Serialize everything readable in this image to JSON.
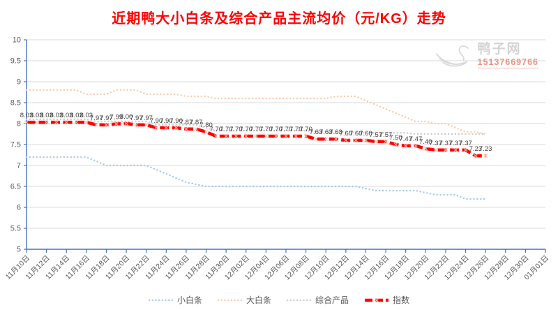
{
  "title": "近期鸭大小白条及综合产品主流均价（元/KG）走势",
  "watermark": {
    "name": "鸭子网",
    "phone": "15137669766"
  },
  "colors": {
    "title": "#ff0000",
    "axis": "#4472c4",
    "gridline": "#d9d9d9",
    "tick_label": "#595959",
    "data_label": "#404040"
  },
  "chart_data": {
    "type": "line",
    "title": "近期鸭大小白条及综合产品主流均价（元/KG）走势",
    "ylabel": "",
    "xlabel": "",
    "ylim": [
      5,
      10
    ],
    "ytick_labels": [
      "10",
      "9.5",
      "9",
      "8.5",
      "8",
      "7.5",
      "7",
      "6.5",
      "6",
      "5.5",
      "5"
    ],
    "x_tick_labels": [
      "11月10日",
      "11月12日",
      "11月14日",
      "11月16日",
      "11月18日",
      "11月20日",
      "11月22日",
      "11月24日",
      "11月26日",
      "11月28日",
      "11月30日",
      "12月02日",
      "12月04日",
      "12月06日",
      "12月08日",
      "12月10日",
      "12月12日",
      "12月14日",
      "12月16日",
      "12月18日",
      "12月20日",
      "12月22日",
      "12月24日",
      "12月26日",
      "12月28日",
      "12月30日",
      "01月01日"
    ],
    "x_tick_step_days": 2,
    "x_total_slots": 53,
    "grid": "horizontal",
    "legend_position": "bottom",
    "series": [
      {
        "name": "小白条",
        "color": "#a6c9ec",
        "line_style": "dotted",
        "show_labels": false,
        "values": [
          7.2,
          7.2,
          7.2,
          7.2,
          7.2,
          7.2,
          7.2,
          7.1,
          7.0,
          7.0,
          7.0,
          7.0,
          7.0,
          6.9,
          6.8,
          6.7,
          6.6,
          6.55,
          6.5,
          6.5,
          6.5,
          6.5,
          6.5,
          6.5,
          6.5,
          6.5,
          6.5,
          6.5,
          6.5,
          6.5,
          6.5,
          6.5,
          6.5,
          6.5,
          6.45,
          6.4,
          6.4,
          6.4,
          6.4,
          6.4,
          6.35,
          6.3,
          6.3,
          6.3,
          6.2,
          6.2,
          6.2
        ]
      },
      {
        "name": "大白条",
        "color": "#f8cbad",
        "line_style": "dotted",
        "show_labels": false,
        "values": [
          8.8,
          8.8,
          8.8,
          8.8,
          8.8,
          8.8,
          8.7,
          8.7,
          8.7,
          8.8,
          8.8,
          8.8,
          8.7,
          8.7,
          8.7,
          8.7,
          8.65,
          8.65,
          8.65,
          8.6,
          8.6,
          8.6,
          8.6,
          8.6,
          8.6,
          8.6,
          8.6,
          8.6,
          8.6,
          8.6,
          8.6,
          8.65,
          8.65,
          8.65,
          8.55,
          8.45,
          8.35,
          8.25,
          8.15,
          8.05,
          8.05,
          8.0,
          8.0,
          7.9,
          7.8,
          7.8,
          7.75
        ]
      },
      {
        "name": "综合产品",
        "color": "#cccccc",
        "line_style": "dotted",
        "show_labels": false,
        "values": [
          8.1,
          8.1,
          8.1,
          8.1,
          8.1,
          8.1,
          8.1,
          8.05,
          8.05,
          8.05,
          8.05,
          8.05,
          8.05,
          7.97,
          7.97,
          7.97,
          7.97,
          7.97,
          7.9,
          7.83,
          7.83,
          7.83,
          7.83,
          7.83,
          7.83,
          7.83,
          7.83,
          7.83,
          7.83,
          7.8,
          7.8,
          7.8,
          7.8,
          7.8,
          7.78,
          7.78,
          7.78,
          7.78,
          7.78,
          7.75,
          7.75,
          7.75,
          7.75,
          7.75,
          7.75,
          7.75,
          7.75
        ]
      },
      {
        "name": "指数",
        "color": "#ff0000",
        "line_style": "bold-dashed",
        "show_labels": true,
        "values": [
          8.03,
          8.03,
          8.03,
          8.03,
          8.03,
          8.03,
          8.03,
          7.97,
          7.97,
          7.99,
          8.0,
          7.97,
          7.97,
          7.9,
          7.9,
          7.9,
          7.87,
          7.87,
          7.8,
          7.7,
          7.7,
          7.7,
          7.7,
          7.7,
          7.7,
          7.7,
          7.7,
          7.7,
          7.7,
          7.63,
          7.63,
          7.63,
          7.6,
          7.6,
          7.6,
          7.57,
          7.57,
          7.5,
          7.47,
          7.47,
          7.4,
          7.37,
          7.37,
          7.37,
          7.37,
          7.23,
          7.23
        ]
      }
    ]
  }
}
